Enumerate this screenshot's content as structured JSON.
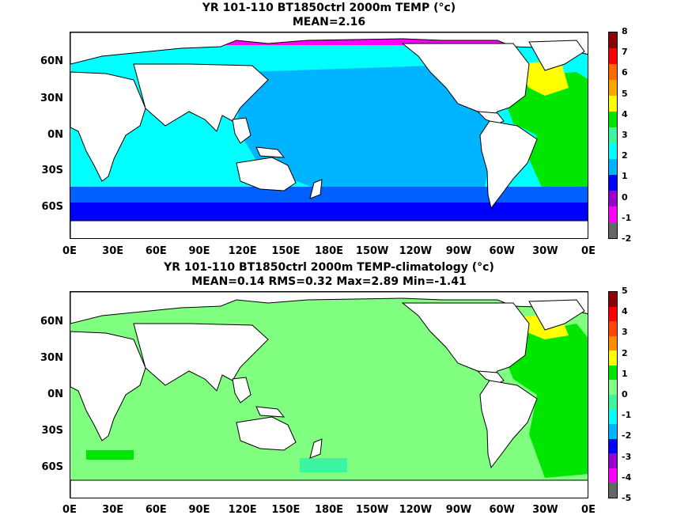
{
  "panel_top": {
    "title_line1": "YR 101-110 BT1850ctrl 2000m TEMP (°c)",
    "title_line2": "MEAN=2.16",
    "colorbar_labels": [
      "8",
      "7",
      "6",
      "5",
      "4",
      "3",
      "2",
      "1",
      "0",
      "-1",
      "-2"
    ],
    "colorbar_colors": [
      "#8b0000",
      "#ff0000",
      "#ff6a00",
      "#ffa500",
      "#ffff00",
      "#00e600",
      "#3cf5a0",
      "#00ffff",
      "#00b4ff",
      "#0000ff",
      "#9900cc",
      "#ff00ff",
      "#666666"
    ]
  },
  "panel_bottom": {
    "title_line1": "YR 101-110 BT1850ctrl 2000m TEMP-climatology (°c)",
    "title_line2": "MEAN=0.14   RMS=0.32   Max=2.89   Min=-1.41",
    "colorbar_labels": [
      "5",
      "4",
      "3",
      "2",
      "1",
      "0",
      "-1",
      "-2",
      "-3",
      "-4",
      "-5"
    ],
    "colorbar_colors": [
      "#8b0000",
      "#ff0000",
      "#ff4500",
      "#ff8c00",
      "#ffff00",
      "#00e600",
      "#80ff80",
      "#3cf5a0",
      "#00ffff",
      "#00b4ff",
      "#0000ff",
      "#9900cc",
      "#ff00ff",
      "#666666"
    ]
  },
  "y_ticks": [
    "60N",
    "30N",
    "0N",
    "30S",
    "60S"
  ],
  "x_ticks": [
    "0E",
    "30E",
    "60E",
    "90E",
    "120E",
    "150E",
    "180E",
    "150W",
    "120W",
    "90W",
    "60W",
    "30W",
    "0E"
  ],
  "colors": {
    "land": "#ffffff",
    "coast": "#000000",
    "top_pacific": "#00b4ff",
    "top_indian": "#00ffff",
    "top_atlantic": "#00e600",
    "top_north_atlantic": "#ffff00",
    "top_southern": "#0060ff",
    "top_antarctic": "#0000ff",
    "top_arctic": "#ff00ff",
    "bottom_ocean": "#80ff80",
    "bottom_atlantic": "#00e600",
    "bottom_north_atlantic": "#ffff00",
    "bottom_patch": "#3cf5a0"
  }
}
